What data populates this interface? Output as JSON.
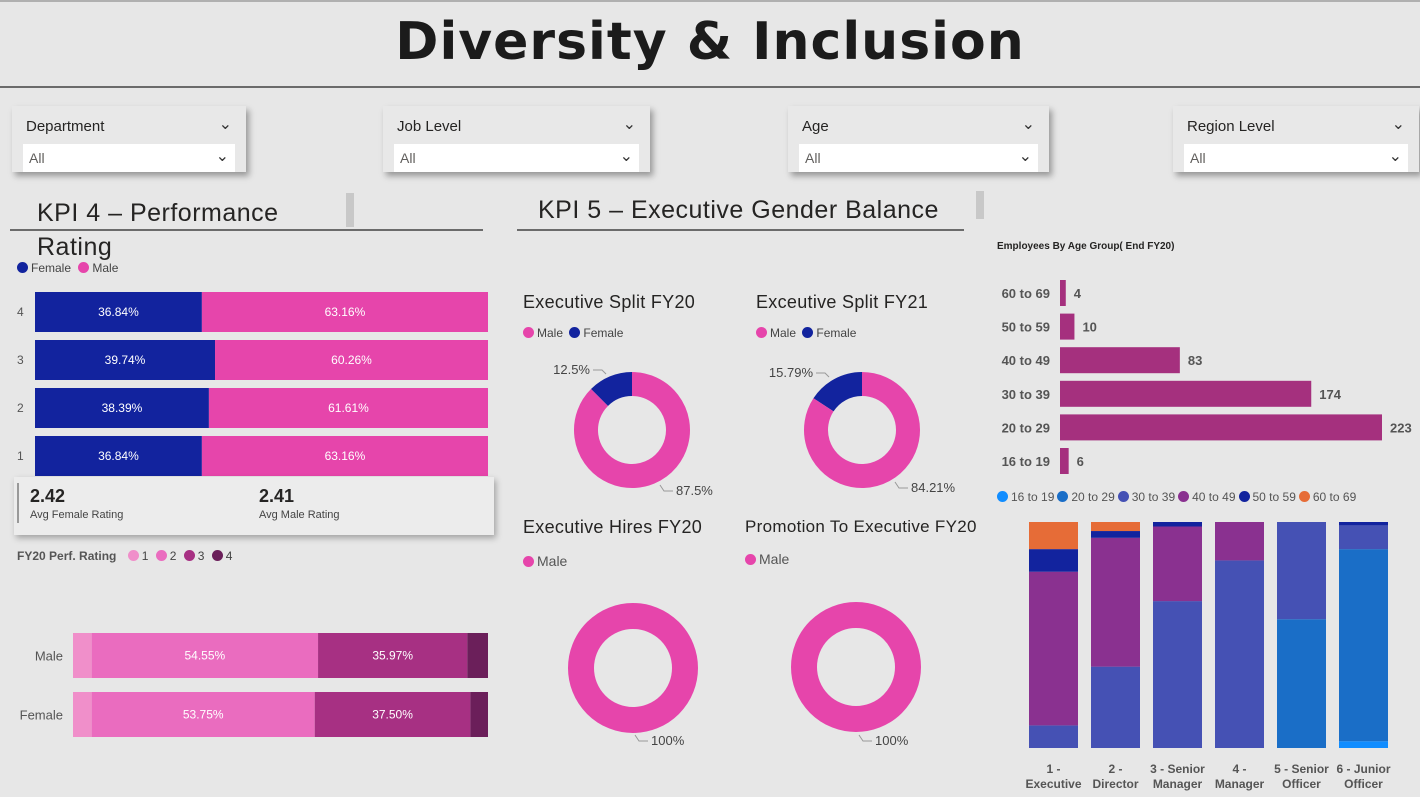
{
  "title": "Diversity & Inclusion",
  "slicers": [
    {
      "label": "Department",
      "value": "All"
    },
    {
      "label": "Job Level",
      "value": "All"
    },
    {
      "label": "Age",
      "value": "All"
    },
    {
      "label": "Region Level",
      "value": "All"
    }
  ],
  "kpi4": {
    "title": "KPI 4 – Performance Rating",
    "legend": [
      "Female",
      "Male"
    ],
    "avg_female": "2.42",
    "avg_female_label": "Avg Female Rating",
    "avg_male": "2.41",
    "avg_male_label": "Avg Male Rating",
    "perf_legend_title": "FY20 Perf. Rating",
    "perf_legend": [
      "1",
      "2",
      "3",
      "4"
    ]
  },
  "kpi5": {
    "title": "KPI 5 – Executive Gender Balance",
    "split20_title": "Executive Split FY20",
    "split21_title": "Exceutive Split FY21",
    "hires_title": "Executive Hires FY20",
    "promo_title": "Promotion To Executive FY20",
    "legend_male": "Male",
    "legend_female": "Female"
  },
  "age_title": "Employees By Age Group( End FY20)",
  "colors": {
    "female": "#12239e",
    "male": "#e645ab",
    "r1": "#f08fca",
    "r2": "#ea6cbf",
    "r3": "#a73083",
    "r4": "#6b1f5a",
    "agebar": "#a5307e",
    "a1619": "#118dff",
    "a2029": "#1a6ec7",
    "a3039": "#4551b4",
    "a4049": "#8a3190",
    "a5059": "#12239e",
    "a6069": "#e66c37"
  },
  "chart_data": [
    {
      "type": "bar",
      "id": "perf_by_rating",
      "orientation": "horizontal",
      "stacked": "100%",
      "categories": [
        "4",
        "3",
        "2",
        "1"
      ],
      "series": [
        {
          "name": "Female",
          "values": [
            36.84,
            39.74,
            38.39,
            36.84
          ],
          "labels": [
            "36.84%",
            "39.74%",
            "38.39%",
            "36.84%"
          ]
        },
        {
          "name": "Male",
          "values": [
            63.16,
            60.26,
            61.61,
            63.16
          ],
          "labels": [
            "63.16%",
            "60.26%",
            "61.61%",
            "63.16%"
          ]
        }
      ]
    },
    {
      "type": "bar",
      "id": "perf_rating_gender",
      "orientation": "horizontal",
      "stacked": "100%",
      "categories": [
        "Male",
        "Female"
      ],
      "series": [
        {
          "name": "1",
          "values": [
            4.5,
            4.5
          ]
        },
        {
          "name": "2",
          "values": [
            54.55,
            53.75
          ],
          "labels": [
            "54.55%",
            "53.75%"
          ]
        },
        {
          "name": "3",
          "values": [
            35.97,
            37.5
          ],
          "labels": [
            "35.97%",
            "37.50%"
          ]
        },
        {
          "name": "4",
          "values": [
            4.98,
            4.25
          ]
        }
      ]
    },
    {
      "type": "pie",
      "id": "split_fy20",
      "donut": true,
      "slices": [
        {
          "name": "Male",
          "value": 87.5,
          "label": "87.5%"
        },
        {
          "name": "Female",
          "value": 12.5,
          "label": "12.5%"
        }
      ]
    },
    {
      "type": "pie",
      "id": "split_fy21",
      "donut": true,
      "slices": [
        {
          "name": "Male",
          "value": 84.21,
          "label": "84.21%"
        },
        {
          "name": "Female",
          "value": 15.79,
          "label": "15.79%"
        }
      ]
    },
    {
      "type": "pie",
      "id": "hires_fy20",
      "donut": true,
      "slices": [
        {
          "name": "Male",
          "value": 100,
          "label": "100%"
        }
      ]
    },
    {
      "type": "pie",
      "id": "promo_fy20",
      "donut": true,
      "slices": [
        {
          "name": "Male",
          "value": 100,
          "label": "100%"
        }
      ]
    },
    {
      "type": "bar",
      "id": "age_groups",
      "orientation": "horizontal",
      "title": "Employees By Age Group( End FY20)",
      "categories": [
        "60 to 69",
        "50 to 59",
        "40 to 49",
        "30 to 39",
        "20 to 29",
        "16 to 19"
      ],
      "values": [
        4,
        10,
        83,
        174,
        223,
        6
      ]
    },
    {
      "type": "bar",
      "id": "age_by_level",
      "stacked": "100%",
      "categories": [
        "1 - Executive",
        "2 - Director",
        "3 - Senior Manager",
        "4 - Manager",
        "5 - Senior Officer",
        "6 - Junior Officer"
      ],
      "series": [
        {
          "name": "16 to 19",
          "values": [
            0,
            0,
            0,
            0,
            0,
            3
          ]
        },
        {
          "name": "20 to 29",
          "values": [
            0,
            0,
            0,
            0,
            57,
            85
          ]
        },
        {
          "name": "30 to 39",
          "values": [
            10,
            36,
            65,
            83,
            43,
            10.5
          ]
        },
        {
          "name": "40 to 49",
          "values": [
            68,
            57,
            33,
            17,
            0,
            0
          ]
        },
        {
          "name": "50 to 59",
          "values": [
            10,
            3,
            2,
            0,
            0,
            1.5
          ]
        },
        {
          "name": "60 to 69",
          "values": [
            12,
            4,
            0,
            0,
            0,
            0
          ]
        }
      ]
    }
  ]
}
